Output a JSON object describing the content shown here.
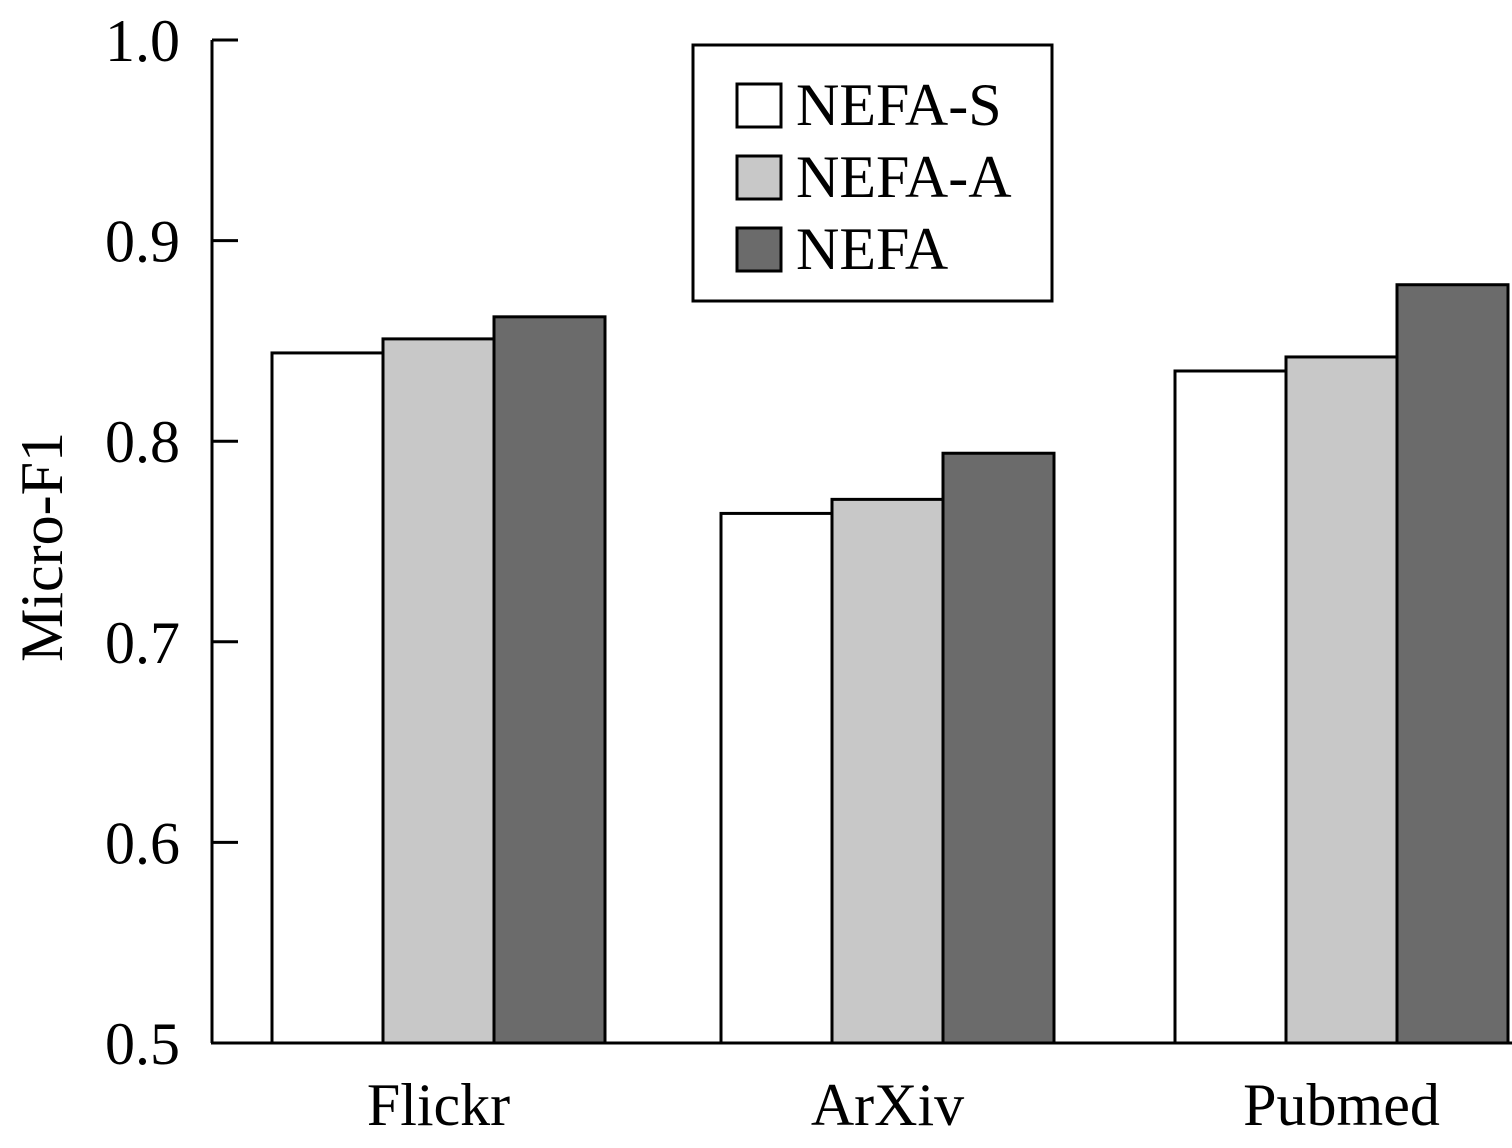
{
  "chart_data": {
    "type": "bar",
    "title": "",
    "xlabel": "",
    "ylabel": "Micro-F1",
    "ylim": [
      0.5,
      1.0
    ],
    "yticks": [
      "0.5",
      "0.6",
      "0.7",
      "0.8",
      "0.9",
      "1.0"
    ],
    "categories": [
      "Flickr",
      "ArXiv",
      "Pubmed"
    ],
    "series": [
      {
        "name": "NEFA-S",
        "color": "#ffffff",
        "values": [
          0.844,
          0.764,
          0.835
        ]
      },
      {
        "name": "NEFA-A",
        "color": "#c8c8c8",
        "values": [
          0.851,
          0.771,
          0.842
        ]
      },
      {
        "name": "NEFA",
        "color": "#6b6b6b",
        "values": [
          0.862,
          0.794,
          0.878
        ]
      }
    ],
    "legend_position": "top-center",
    "grid": false
  }
}
